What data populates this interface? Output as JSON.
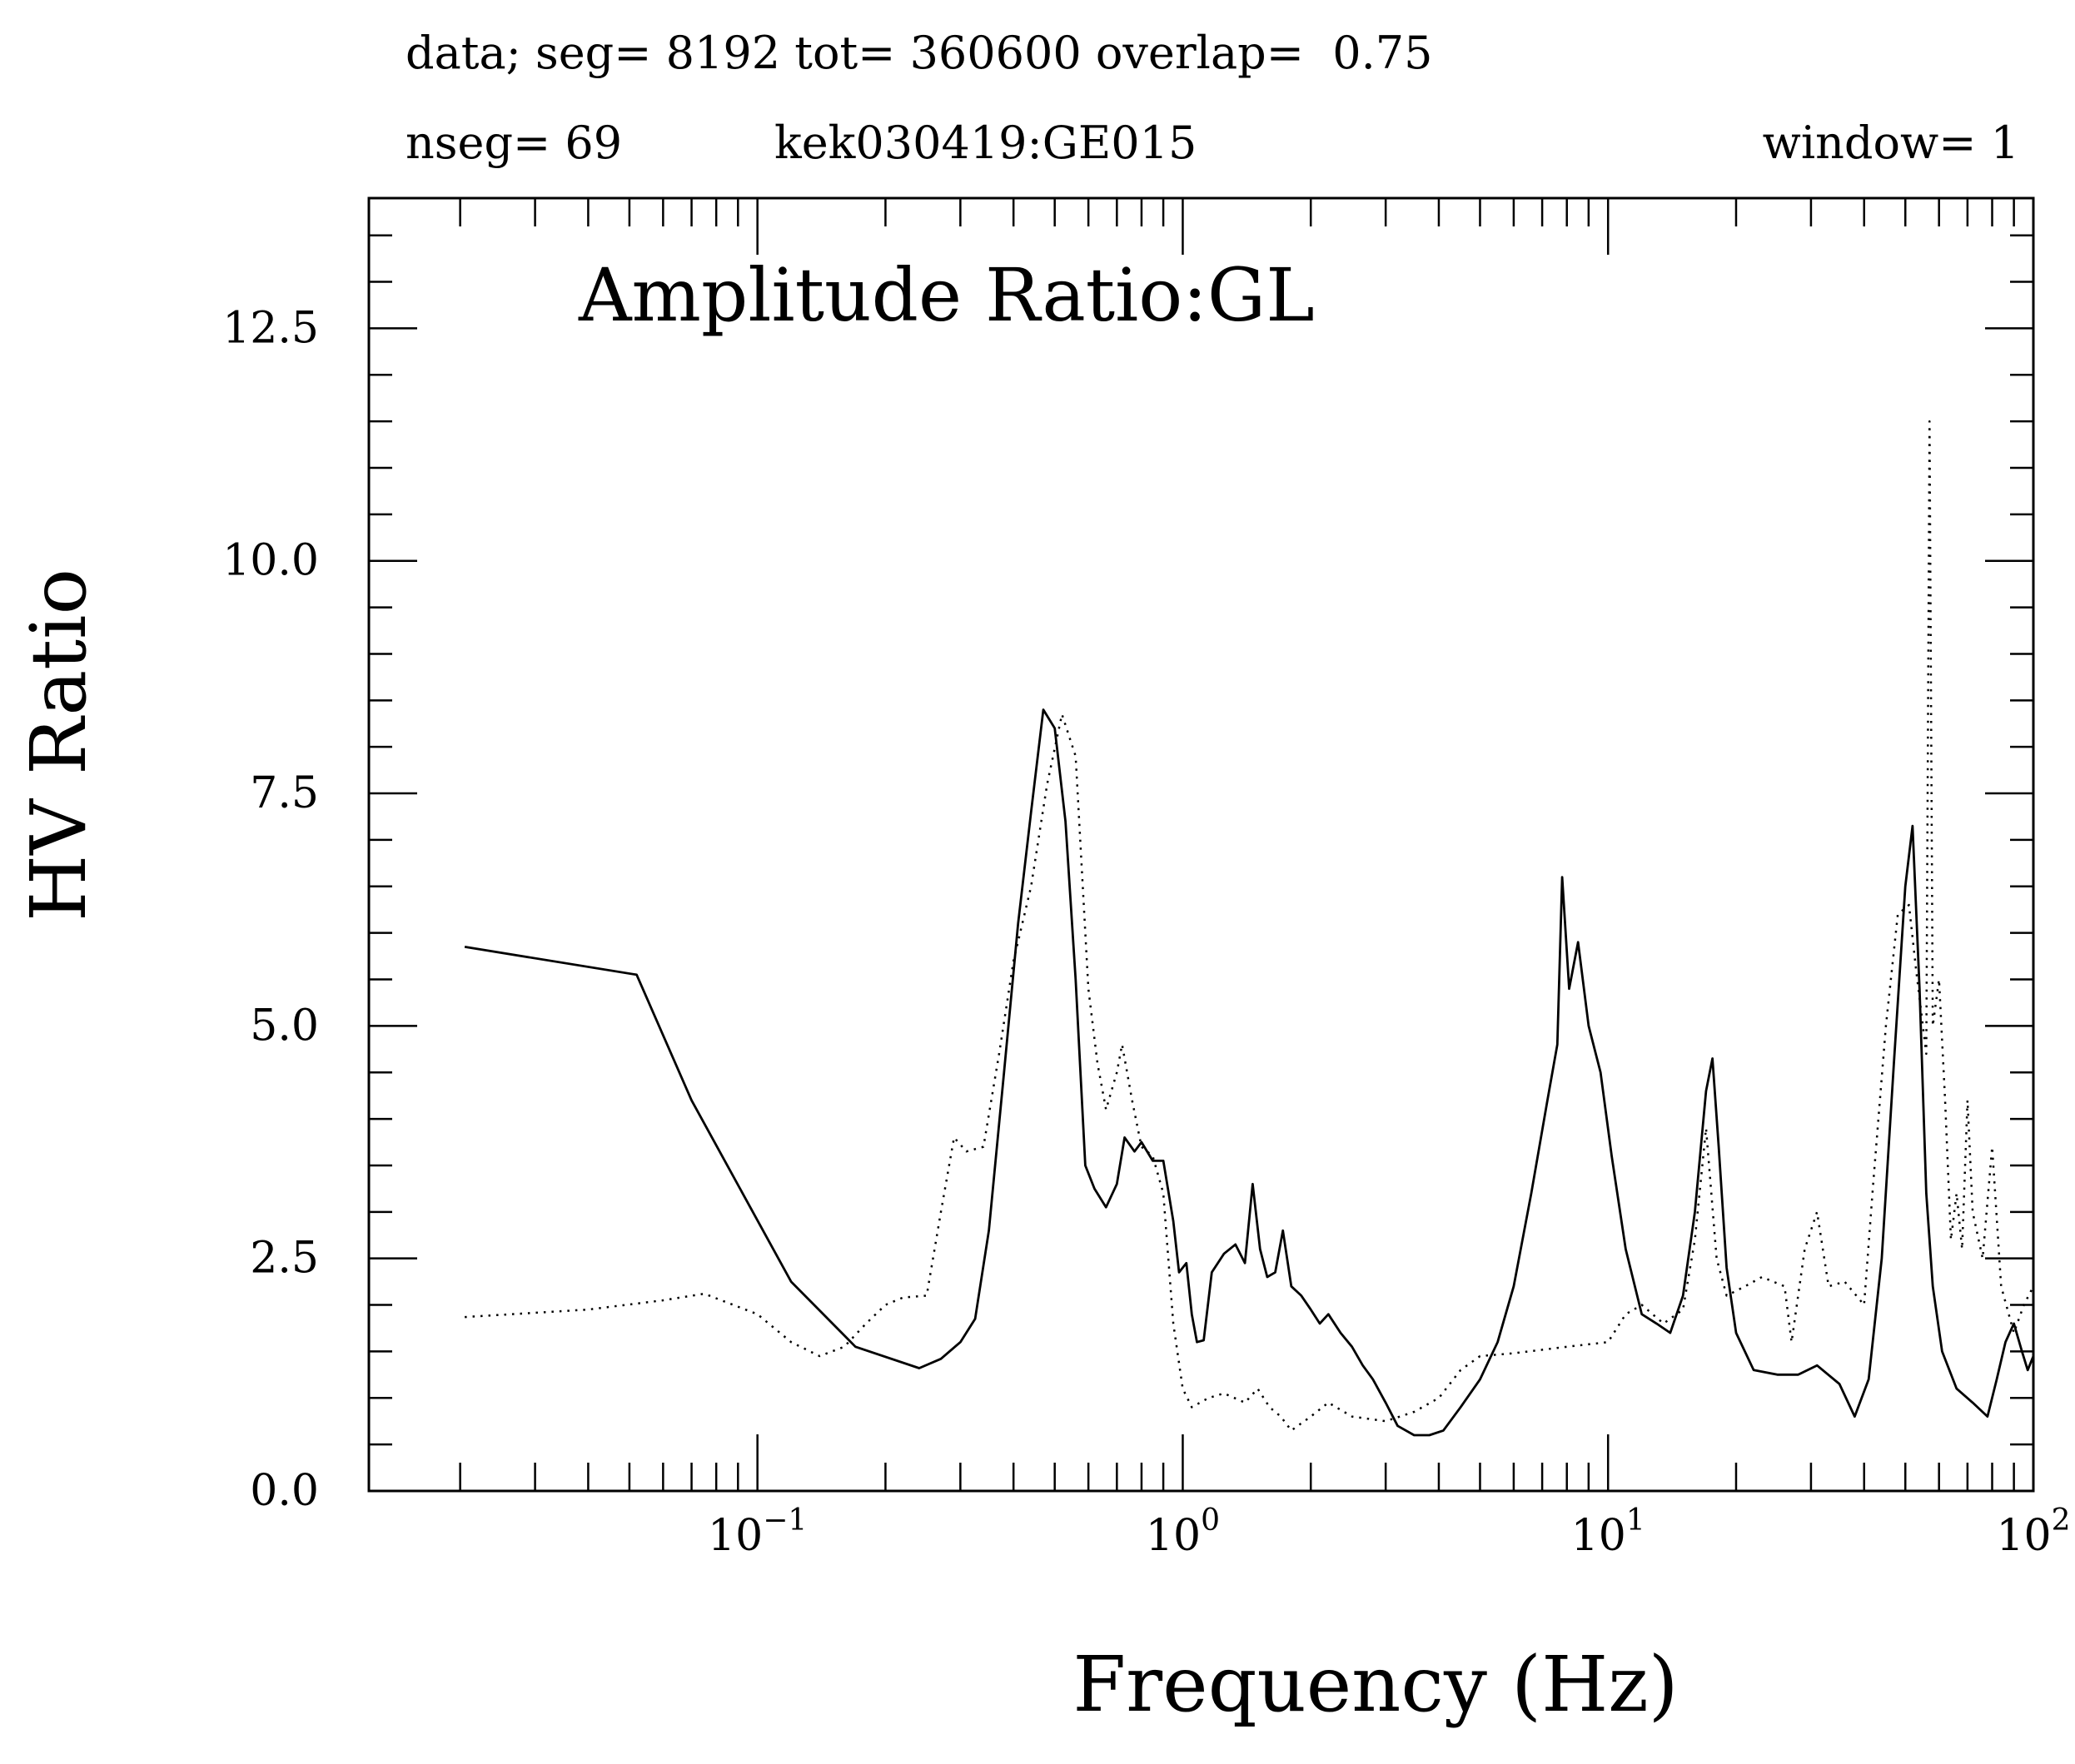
{
  "header": {
    "line1": "data; seg= 8192 tot= 360600 overlap=  0.75",
    "nseg": "nseg= 69",
    "station": "kek030419:GE015",
    "window": "window= 1"
  },
  "chart_data": {
    "type": "line",
    "title": "Amplitude Ratio:GL",
    "xlabel": "Frequency (Hz)",
    "ylabel": "HV Ratio",
    "xscale": "log",
    "xlim": [
      0.0122,
      100
    ],
    "ylim": [
      0,
      13.9
    ],
    "yticks": [
      "0.0",
      "2.5",
      "5.0",
      "7.5",
      "10.0",
      "12.5"
    ],
    "xticks": [
      {
        "base": "10",
        "exp": "−1"
      },
      {
        "base": "10",
        "exp": "0"
      },
      {
        "base": "10",
        "exp": "1"
      },
      {
        "base": "10",
        "exp": "2"
      }
    ],
    "grid": false,
    "legend": "none",
    "series": [
      {
        "style": "solid",
        "color": "#000000",
        "points": [
          [
            0.0205,
            5.85
          ],
          [
            0.052,
            5.55
          ],
          [
            0.07,
            4.2
          ],
          [
            0.12,
            2.25
          ],
          [
            0.17,
            1.55
          ],
          [
            0.24,
            1.32
          ],
          [
            0.27,
            1.42
          ],
          [
            0.3,
            1.6
          ],
          [
            0.325,
            1.85
          ],
          [
            0.35,
            2.8
          ],
          [
            0.38,
            4.5
          ],
          [
            0.41,
            6.1
          ],
          [
            0.44,
            7.3
          ],
          [
            0.47,
            8.4
          ],
          [
            0.5,
            8.2
          ],
          [
            0.53,
            7.2
          ],
          [
            0.56,
            5.5
          ],
          [
            0.59,
            3.5
          ],
          [
            0.62,
            3.25
          ],
          [
            0.66,
            3.05
          ],
          [
            0.7,
            3.3
          ],
          [
            0.73,
            3.8
          ],
          [
            0.77,
            3.65
          ],
          [
            0.8,
            3.75
          ],
          [
            0.85,
            3.55
          ],
          [
            0.9,
            3.55
          ],
          [
            0.95,
            2.9
          ],
          [
            0.98,
            2.35
          ],
          [
            1.02,
            2.45
          ],
          [
            1.05,
            1.9
          ],
          [
            1.08,
            1.6
          ],
          [
            1.12,
            1.62
          ],
          [
            1.17,
            2.35
          ],
          [
            1.25,
            2.55
          ],
          [
            1.33,
            2.65
          ],
          [
            1.4,
            2.45
          ],
          [
            1.46,
            3.3
          ],
          [
            1.52,
            2.6
          ],
          [
            1.58,
            2.3
          ],
          [
            1.65,
            2.35
          ],
          [
            1.72,
            2.8
          ],
          [
            1.8,
            2.2
          ],
          [
            1.9,
            2.1
          ],
          [
            2.0,
            1.95
          ],
          [
            2.1,
            1.8
          ],
          [
            2.2,
            1.9
          ],
          [
            2.35,
            1.7
          ],
          [
            2.5,
            1.55
          ],
          [
            2.65,
            1.35
          ],
          [
            2.8,
            1.2
          ],
          [
            3.0,
            0.95
          ],
          [
            3.2,
            0.7
          ],
          [
            3.5,
            0.6
          ],
          [
            3.8,
            0.6
          ],
          [
            4.1,
            0.65
          ],
          [
            4.5,
            0.9
          ],
          [
            5.0,
            1.2
          ],
          [
            5.5,
            1.6
          ],
          [
            6.0,
            2.2
          ],
          [
            6.6,
            3.2
          ],
          [
            7.2,
            4.2
          ],
          [
            7.6,
            4.8
          ],
          [
            7.8,
            6.6
          ],
          [
            8.1,
            5.4
          ],
          [
            8.5,
            5.9
          ],
          [
            9.0,
            5.0
          ],
          [
            9.6,
            4.5
          ],
          [
            10.2,
            3.6
          ],
          [
            11.0,
            2.6
          ],
          [
            12.0,
            1.9
          ],
          [
            13.0,
            1.8
          ],
          [
            14.0,
            1.7
          ],
          [
            15.0,
            2.1
          ],
          [
            16.0,
            3.0
          ],
          [
            17.0,
            4.3
          ],
          [
            17.6,
            4.65
          ],
          [
            18.2,
            3.7
          ],
          [
            19.0,
            2.4
          ],
          [
            20.0,
            1.7
          ],
          [
            22.0,
            1.3
          ],
          [
            25.0,
            1.25
          ],
          [
            28.0,
            1.25
          ],
          [
            31.0,
            1.35
          ],
          [
            35.0,
            1.15
          ],
          [
            38.0,
            0.8
          ],
          [
            41.0,
            1.2
          ],
          [
            44.0,
            2.5
          ],
          [
            47.0,
            4.6
          ],
          [
            50.0,
            6.5
          ],
          [
            52.0,
            7.15
          ],
          [
            54.0,
            5.4
          ],
          [
            56.0,
            3.2
          ],
          [
            58.0,
            2.2
          ],
          [
            61.0,
            1.5
          ],
          [
            66.0,
            1.1
          ],
          [
            72.0,
            0.95
          ],
          [
            78.0,
            0.8
          ],
          [
            82.0,
            1.2
          ],
          [
            86.0,
            1.6
          ],
          [
            90.0,
            1.8
          ],
          [
            94.0,
            1.5
          ],
          [
            97.0,
            1.3
          ],
          [
            100.0,
            1.45
          ]
        ]
      },
      {
        "style": "dotted",
        "color": "#000000",
        "points": [
          [
            0.0205,
            1.87
          ],
          [
            0.04,
            1.95
          ],
          [
            0.06,
            2.05
          ],
          [
            0.075,
            2.12
          ],
          [
            0.1,
            1.9
          ],
          [
            0.12,
            1.6
          ],
          [
            0.14,
            1.45
          ],
          [
            0.16,
            1.55
          ],
          [
            0.18,
            1.8
          ],
          [
            0.2,
            2.0
          ],
          [
            0.22,
            2.08
          ],
          [
            0.25,
            2.1
          ],
          [
            0.27,
            3.0
          ],
          [
            0.29,
            3.8
          ],
          [
            0.31,
            3.65
          ],
          [
            0.34,
            3.7
          ],
          [
            0.37,
            4.7
          ],
          [
            0.4,
            5.7
          ],
          [
            0.44,
            6.5
          ],
          [
            0.48,
            7.6
          ],
          [
            0.52,
            8.35
          ],
          [
            0.56,
            7.9
          ],
          [
            0.6,
            5.4
          ],
          [
            0.63,
            4.6
          ],
          [
            0.66,
            4.1
          ],
          [
            0.7,
            4.5
          ],
          [
            0.72,
            4.8
          ],
          [
            0.76,
            4.2
          ],
          [
            0.8,
            3.7
          ],
          [
            0.85,
            3.6
          ],
          [
            0.9,
            3.2
          ],
          [
            0.95,
            1.8
          ],
          [
            1.0,
            1.1
          ],
          [
            1.05,
            0.9
          ],
          [
            1.15,
            1.0
          ],
          [
            1.25,
            1.05
          ],
          [
            1.4,
            0.95
          ],
          [
            1.5,
            1.1
          ],
          [
            1.6,
            0.9
          ],
          [
            1.7,
            0.8
          ],
          [
            1.8,
            0.65
          ],
          [
            2.0,
            0.8
          ],
          [
            2.2,
            0.95
          ],
          [
            2.5,
            0.8
          ],
          [
            3.0,
            0.75
          ],
          [
            3.5,
            0.85
          ],
          [
            4.0,
            1.0
          ],
          [
            4.5,
            1.3
          ],
          [
            5.0,
            1.45
          ],
          [
            6.0,
            1.48
          ],
          [
            8.0,
            1.55
          ],
          [
            10.0,
            1.6
          ],
          [
            11.0,
            1.9
          ],
          [
            12.0,
            2.0
          ],
          [
            13.5,
            1.8
          ],
          [
            15.0,
            1.95
          ],
          [
            16.0,
            2.7
          ],
          [
            17.0,
            3.9
          ],
          [
            18.0,
            2.5
          ],
          [
            19.0,
            2.1
          ],
          [
            21.0,
            2.2
          ],
          [
            23.0,
            2.3
          ],
          [
            26.0,
            2.2
          ],
          [
            27.0,
            1.6
          ],
          [
            29.0,
            2.6
          ],
          [
            31.0,
            3.0
          ],
          [
            33.0,
            2.2
          ],
          [
            36.0,
            2.25
          ],
          [
            40.0,
            2.0
          ],
          [
            42.0,
            3.3
          ],
          [
            45.0,
            5.0
          ],
          [
            48.0,
            6.2
          ],
          [
            51.0,
            6.3
          ],
          [
            53.0,
            5.6
          ],
          [
            56.0,
            4.7
          ],
          [
            57.0,
            11.5
          ],
          [
            58.0,
            5.0
          ],
          [
            60.0,
            5.5
          ],
          [
            62.0,
            4.2
          ],
          [
            64.0,
            2.7
          ],
          [
            66.0,
            3.2
          ],
          [
            68.0,
            2.6
          ],
          [
            70.0,
            4.2
          ],
          [
            72.0,
            3.0
          ],
          [
            76.0,
            2.5
          ],
          [
            80.0,
            3.7
          ],
          [
            84.0,
            2.2
          ],
          [
            90.0,
            1.7
          ],
          [
            95.0,
            2.0
          ],
          [
            100.0,
            2.2
          ]
        ]
      }
    ]
  }
}
